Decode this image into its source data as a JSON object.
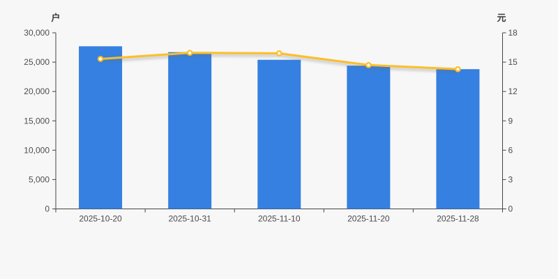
{
  "chart_data": {
    "type": "bar+line",
    "title": "",
    "categories": [
      "2025-10-20",
      "2025-10-31",
      "2025-11-10",
      "2025-11-20",
      "2025-11-28"
    ],
    "series": [
      {
        "name": "bar-series",
        "type": "bar",
        "yaxis": "left",
        "color": "#3580e0",
        "values": [
          27700,
          26700,
          25400,
          24400,
          23800
        ]
      },
      {
        "name": "line-series",
        "type": "line",
        "yaxis": "right",
        "color": "#fdbe27",
        "marker_fill": "#ffffff",
        "values": [
          15.33,
          15.95,
          15.9,
          14.7,
          14.28
        ]
      }
    ],
    "left_axis": {
      "label": "户",
      "min": 0,
      "max": 30000,
      "step": 5000,
      "tick_labels": [
        "0",
        "5,000",
        "10,000",
        "15,000",
        "20,000",
        "25,000",
        "30,000"
      ]
    },
    "right_axis": {
      "label": "元",
      "min": 0,
      "max": 18,
      "step": 3,
      "tick_labels": [
        "0",
        "3",
        "6",
        "9",
        "12",
        "15",
        "18"
      ]
    },
    "grid": false,
    "legend": "none",
    "colors": {
      "background": "#f7f7f7",
      "axis_line": "#444444",
      "tick_text": "#4d4d4d"
    }
  }
}
